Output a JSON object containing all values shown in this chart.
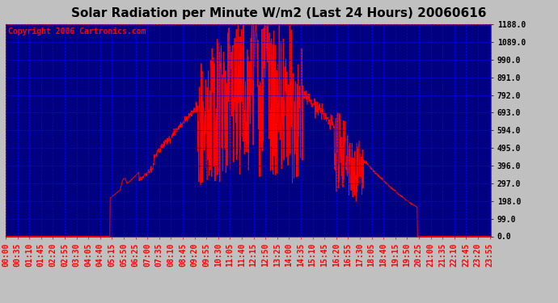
{
  "title": "Solar Radiation per Minute W/m2 (Last 24 Hours) 20060616",
  "copyright": "Copyright 2006 Cartronics.com",
  "bg_color": "#000080",
  "line_color": "#FF0000",
  "grid_color": "#0000FF",
  "title_color": "#000000",
  "outer_bg": "#C0C0C0",
  "ytick_color": "#000000",
  "xtick_color": "#FF0000",
  "ylim": [
    0.0,
    1188.0
  ],
  "yticks": [
    0.0,
    99.0,
    198.0,
    297.0,
    396.0,
    495.0,
    594.0,
    693.0,
    792.0,
    891.0,
    990.0,
    1089.0,
    1188.0
  ],
  "num_points": 1440,
  "title_fontsize": 11,
  "tick_fontsize": 7,
  "copyright_fontsize": 7
}
